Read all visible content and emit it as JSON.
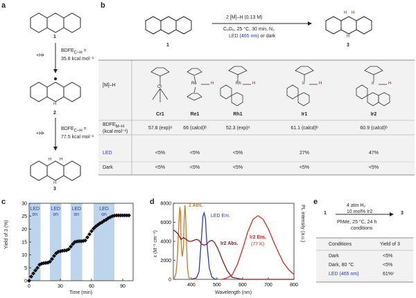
{
  "panels": {
    "a": "a",
    "b": "b",
    "c": "c",
    "d": "d",
    "e": "e"
  },
  "panel_a": {
    "cmpd1": "1",
    "cmpd2": "2",
    "cmpd3": "3",
    "add_h1": "+H•",
    "add_h2": "+H•",
    "bdfe1_label": "BDFE",
    "bdfe1_sub": "C–H",
    "bdfe1_eq": " =",
    "bdfe1_val": "35.8 kcal mol⁻¹",
    "bdfe2_label": "BDFE",
    "bdfe2_sub": "C–H",
    "bdfe2_eq": " =",
    "bdfe2_val": "77.5 kcal mol⁻¹",
    "h_atom": "H"
  },
  "panel_b": {
    "reagent_line": "2 [M]–H (0.13 M)",
    "cond_line": "C₆D₆, 25 °C, 30 min, N₂",
    "light_led": "LED (465 nm)",
    "light_or": " or dark",
    "start_label": "1",
    "product_label": "3",
    "h_atom": "H",
    "row_header": "[M]–H",
    "catalysts": [
      "Cr1",
      "Re1",
      "Rh1",
      "Ir1",
      "Ir2"
    ],
    "bdfe_row_label1": "BDFE",
    "bdfe_row_sub": "M–H",
    "bdfe_row_label2": "(kcal mol⁻¹)",
    "bdfe_values": [
      "57.8 (exp)ᵃ",
      "66 (calcd)ᵇ",
      "52.3 (exp)ᵃ",
      "61.1 (calcd)ᵇ",
      "60.9 (calcd)ᵇ"
    ],
    "led_row_label": "LED",
    "led_values": [
      "<5%",
      "<5%",
      "<5%",
      "27%",
      "47%"
    ],
    "dark_row_label": "Dark",
    "dark_values": [
      "<5%",
      "<5%",
      "<5%",
      "<5%",
      "<5%"
    ],
    "struct_labels": {
      "cr": "Cr",
      "re": "Re",
      "rh": "Rh",
      "ir": "Ir",
      "n": "N",
      "h": "H",
      "o": "O"
    }
  },
  "panel_c": {
    "led_boxes": [
      {
        "l1": "LED",
        "l2": "on"
      },
      {
        "l1": "LED",
        "l2": "on"
      },
      {
        "l1": "LED",
        "l2": "on"
      },
      {
        "l1": "LED",
        "l2": "on"
      }
    ],
    "ylabel": "Yield of 3 (%)",
    "xlabel": "Time (min)"
  },
  "panel_d": {
    "ylabel_left": "ε (M⁻¹ cm⁻¹)",
    "ylabel_right": "PL intensity (a.u.)",
    "xlabel": "Wavelength (nm)",
    "label_1abs": "1 Abs.",
    "label_led": "LED Em.",
    "label_ir2abs": "Ir2 Abs.",
    "label_ir2em1": "Ir2 Em.",
    "label_ir2em2": "(77 K)"
  },
  "panel_e": {
    "reagent_top": "4 atm H₂",
    "reagent_mid": "10 mol% Ir2",
    "cond1": "PhMe, 25 °C, 24 h",
    "cond2": "conditions",
    "start": "1",
    "product": "3",
    "col_conditions": "Conditions",
    "col_yield": "Yield of 3",
    "rows": [
      {
        "cond": "Dark",
        "yield": "<5%"
      },
      {
        "cond": "Dark, 80 °C",
        "yield": "<5%"
      },
      {
        "cond": "LED (465 nm)",
        "yield": "61%ᶜ"
      }
    ]
  },
  "colors": {
    "led_box": "#bcd4ec",
    "marker": "#111111",
    "orange": "#c8771b",
    "blue": "#2b3aa8",
    "darkred": "#7a1a1a",
    "red": "#d42a1a",
    "table_bg": "#f2f2f2"
  },
  "chart_data": [
    {
      "type": "scatter",
      "title": "",
      "xlabel": "Time (min)",
      "ylabel": "Yield of 3 (%)",
      "xlim": [
        0,
        100
      ],
      "ylim": [
        0,
        30
      ],
      "xticks": [
        0,
        30,
        60,
        90
      ],
      "yticks": [
        0,
        5,
        10,
        15,
        20,
        25,
        30
      ],
      "led_on_intervals": [
        [
          0,
          11
        ],
        [
          20,
          31
        ],
        [
          40,
          51
        ],
        [
          62,
          82
        ]
      ],
      "series": [
        {
          "x": [
            0,
            2,
            4,
            6,
            8,
            10,
            12,
            14,
            16,
            18,
            20,
            22,
            24,
            26,
            28,
            30,
            32,
            34,
            36,
            38,
            40,
            42,
            44,
            46,
            48,
            50,
            52,
            54,
            56,
            58,
            60,
            62,
            64,
            66,
            68,
            70,
            72,
            74,
            76,
            78,
            80,
            82,
            84,
            86,
            88,
            90,
            92,
            94,
            96
          ],
          "y": [
            0,
            1.6,
            2.8,
            4.0,
            5.0,
            6.2,
            6.6,
            6.8,
            6.9,
            7.0,
            7.4,
            8.4,
            9.6,
            10.6,
            11.2,
            11.4,
            11.6,
            11.7,
            11.8,
            12.2,
            13.2,
            14.2,
            15.0,
            15.2,
            15.3,
            15.3,
            15.4,
            15.6,
            16.8,
            18.0,
            19.2,
            20.2,
            21.0,
            21.6,
            22.2,
            22.6,
            23.2,
            23.6,
            24.2,
            24.6,
            25.0,
            25.2,
            25.3,
            25.3,
            25.3,
            25.3,
            25.3,
            25.3,
            25.3
          ]
        }
      ]
    },
    {
      "type": "line",
      "title": "",
      "xlabel": "Wavelength (nm)",
      "ylabel": "ε (M⁻¹ cm⁻¹)",
      "xlim": [
        330,
        800
      ],
      "ylim": [
        0,
        8000
      ],
      "xticks": [
        400,
        500,
        600,
        700,
        800
      ],
      "yticks": [
        0,
        2000,
        4000,
        6000,
        8000
      ],
      "series": [
        {
          "name": "1 Abs.",
          "x": [
            330,
            335,
            340,
            345,
            350,
            355,
            358,
            360,
            362,
            365,
            370,
            372,
            375,
            378,
            380,
            385,
            390,
            395,
            400,
            410,
            420
          ],
          "y": [
            0,
            200,
            600,
            2000,
            5000,
            7600,
            7000,
            4200,
            3000,
            2400,
            3600,
            6200,
            7800,
            6600,
            4800,
            1200,
            200,
            50,
            0,
            0,
            0
          ]
        },
        {
          "name": "LED Em.",
          "x": [
            400,
            420,
            430,
            440,
            445,
            450,
            455,
            460,
            470,
            480,
            490,
            500
          ],
          "y": [
            0,
            150,
            800,
            4500,
            6600,
            7000,
            6400,
            4000,
            1200,
            250,
            50,
            0
          ]
        },
        {
          "name": "Ir2 Abs.",
          "x": [
            330,
            340,
            350,
            360,
            370,
            380,
            390,
            400,
            410,
            420,
            430,
            440,
            450,
            460,
            470,
            480,
            490,
            500,
            510,
            520,
            530,
            540,
            560,
            600,
            700,
            800
          ],
          "y": [
            5200,
            5000,
            4700,
            4200,
            4400,
            4200,
            4000,
            4000,
            4100,
            4200,
            4100,
            3700,
            3600,
            3700,
            4000,
            4100,
            3900,
            3400,
            2800,
            2100,
            1500,
            900,
            200,
            0,
            0,
            0
          ]
        },
        {
          "name": "Ir2 Em. (77 K)",
          "x": [
            520,
            540,
            560,
            580,
            600,
            620,
            640,
            660,
            680,
            700,
            720,
            740,
            760,
            780,
            800
          ],
          "y": [
            0,
            150,
            500,
            1600,
            3200,
            5000,
            6300,
            6700,
            6300,
            5300,
            4000,
            2800,
            1700,
            1000,
            500
          ]
        }
      ]
    }
  ]
}
